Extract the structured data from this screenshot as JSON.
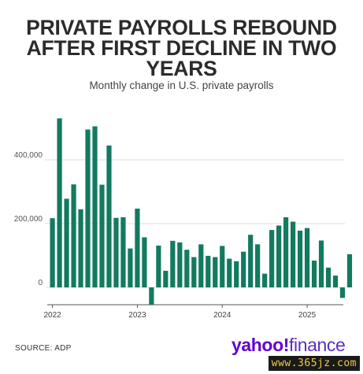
{
  "title_lines": [
    "PRIVATE PAYROLLS REBOUND",
    "AFTER FIRST DECLINE IN TWO",
    "YEARS"
  ],
  "subtitle": "Monthly change in U.S. private payrolls",
  "source": "SOURCE: ADP",
  "logo": {
    "yahoo": "yahoo!",
    "finance": "finance"
  },
  "watermark": "www.365jz.com",
  "colors": {
    "bar": "#127a60",
    "grid": "#dddddd",
    "axis": "#555555"
  },
  "chart_data": {
    "type": "bar",
    "title": "PRIVATE PAYROLLS REBOUND AFTER FIRST DECLINE IN TWO YEARS",
    "subtitle": "Monthly change in U.S. private payrolls",
    "xlabel": "",
    "ylabel": "",
    "ylim": [
      -60000,
      560000
    ],
    "yticks": [
      0,
      200000,
      400000
    ],
    "ytick_labels": [
      "0",
      "200,000",
      "400,000"
    ],
    "xtick_labels": [
      "2022",
      "2023",
      "2024",
      "2025"
    ],
    "xtick_index": [
      0,
      12,
      24,
      36
    ],
    "categories": [
      "2022-01",
      "2022-02",
      "2022-03",
      "2022-04",
      "2022-05",
      "2022-06",
      "2022-07",
      "2022-08",
      "2022-09",
      "2022-10",
      "2022-11",
      "2022-12",
      "2023-01",
      "2023-02",
      "2023-03",
      "2023-04",
      "2023-05",
      "2023-06",
      "2023-07",
      "2023-08",
      "2023-09",
      "2023-10",
      "2023-11",
      "2023-12",
      "2024-01",
      "2024-02",
      "2024-03",
      "2024-04",
      "2024-05",
      "2024-06",
      "2024-07",
      "2024-08",
      "2024-09",
      "2024-10",
      "2024-11",
      "2024-12",
      "2025-01",
      "2025-02",
      "2025-03",
      "2025-04",
      "2025-05",
      "2025-06",
      "2025-07"
    ],
    "values": [
      217000,
      530000,
      278000,
      323000,
      245000,
      495000,
      505000,
      322000,
      445000,
      218000,
      220000,
      122000,
      247000,
      157000,
      -55000,
      131000,
      52000,
      146000,
      141000,
      118000,
      95000,
      135000,
      99000,
      95000,
      130000,
      90000,
      82000,
      112000,
      165000,
      135000,
      43000,
      180000,
      194000,
      220000,
      206000,
      178000,
      186000,
      84000,
      147000,
      62000,
      37000,
      -33000,
      104000
    ],
    "grid": true
  }
}
